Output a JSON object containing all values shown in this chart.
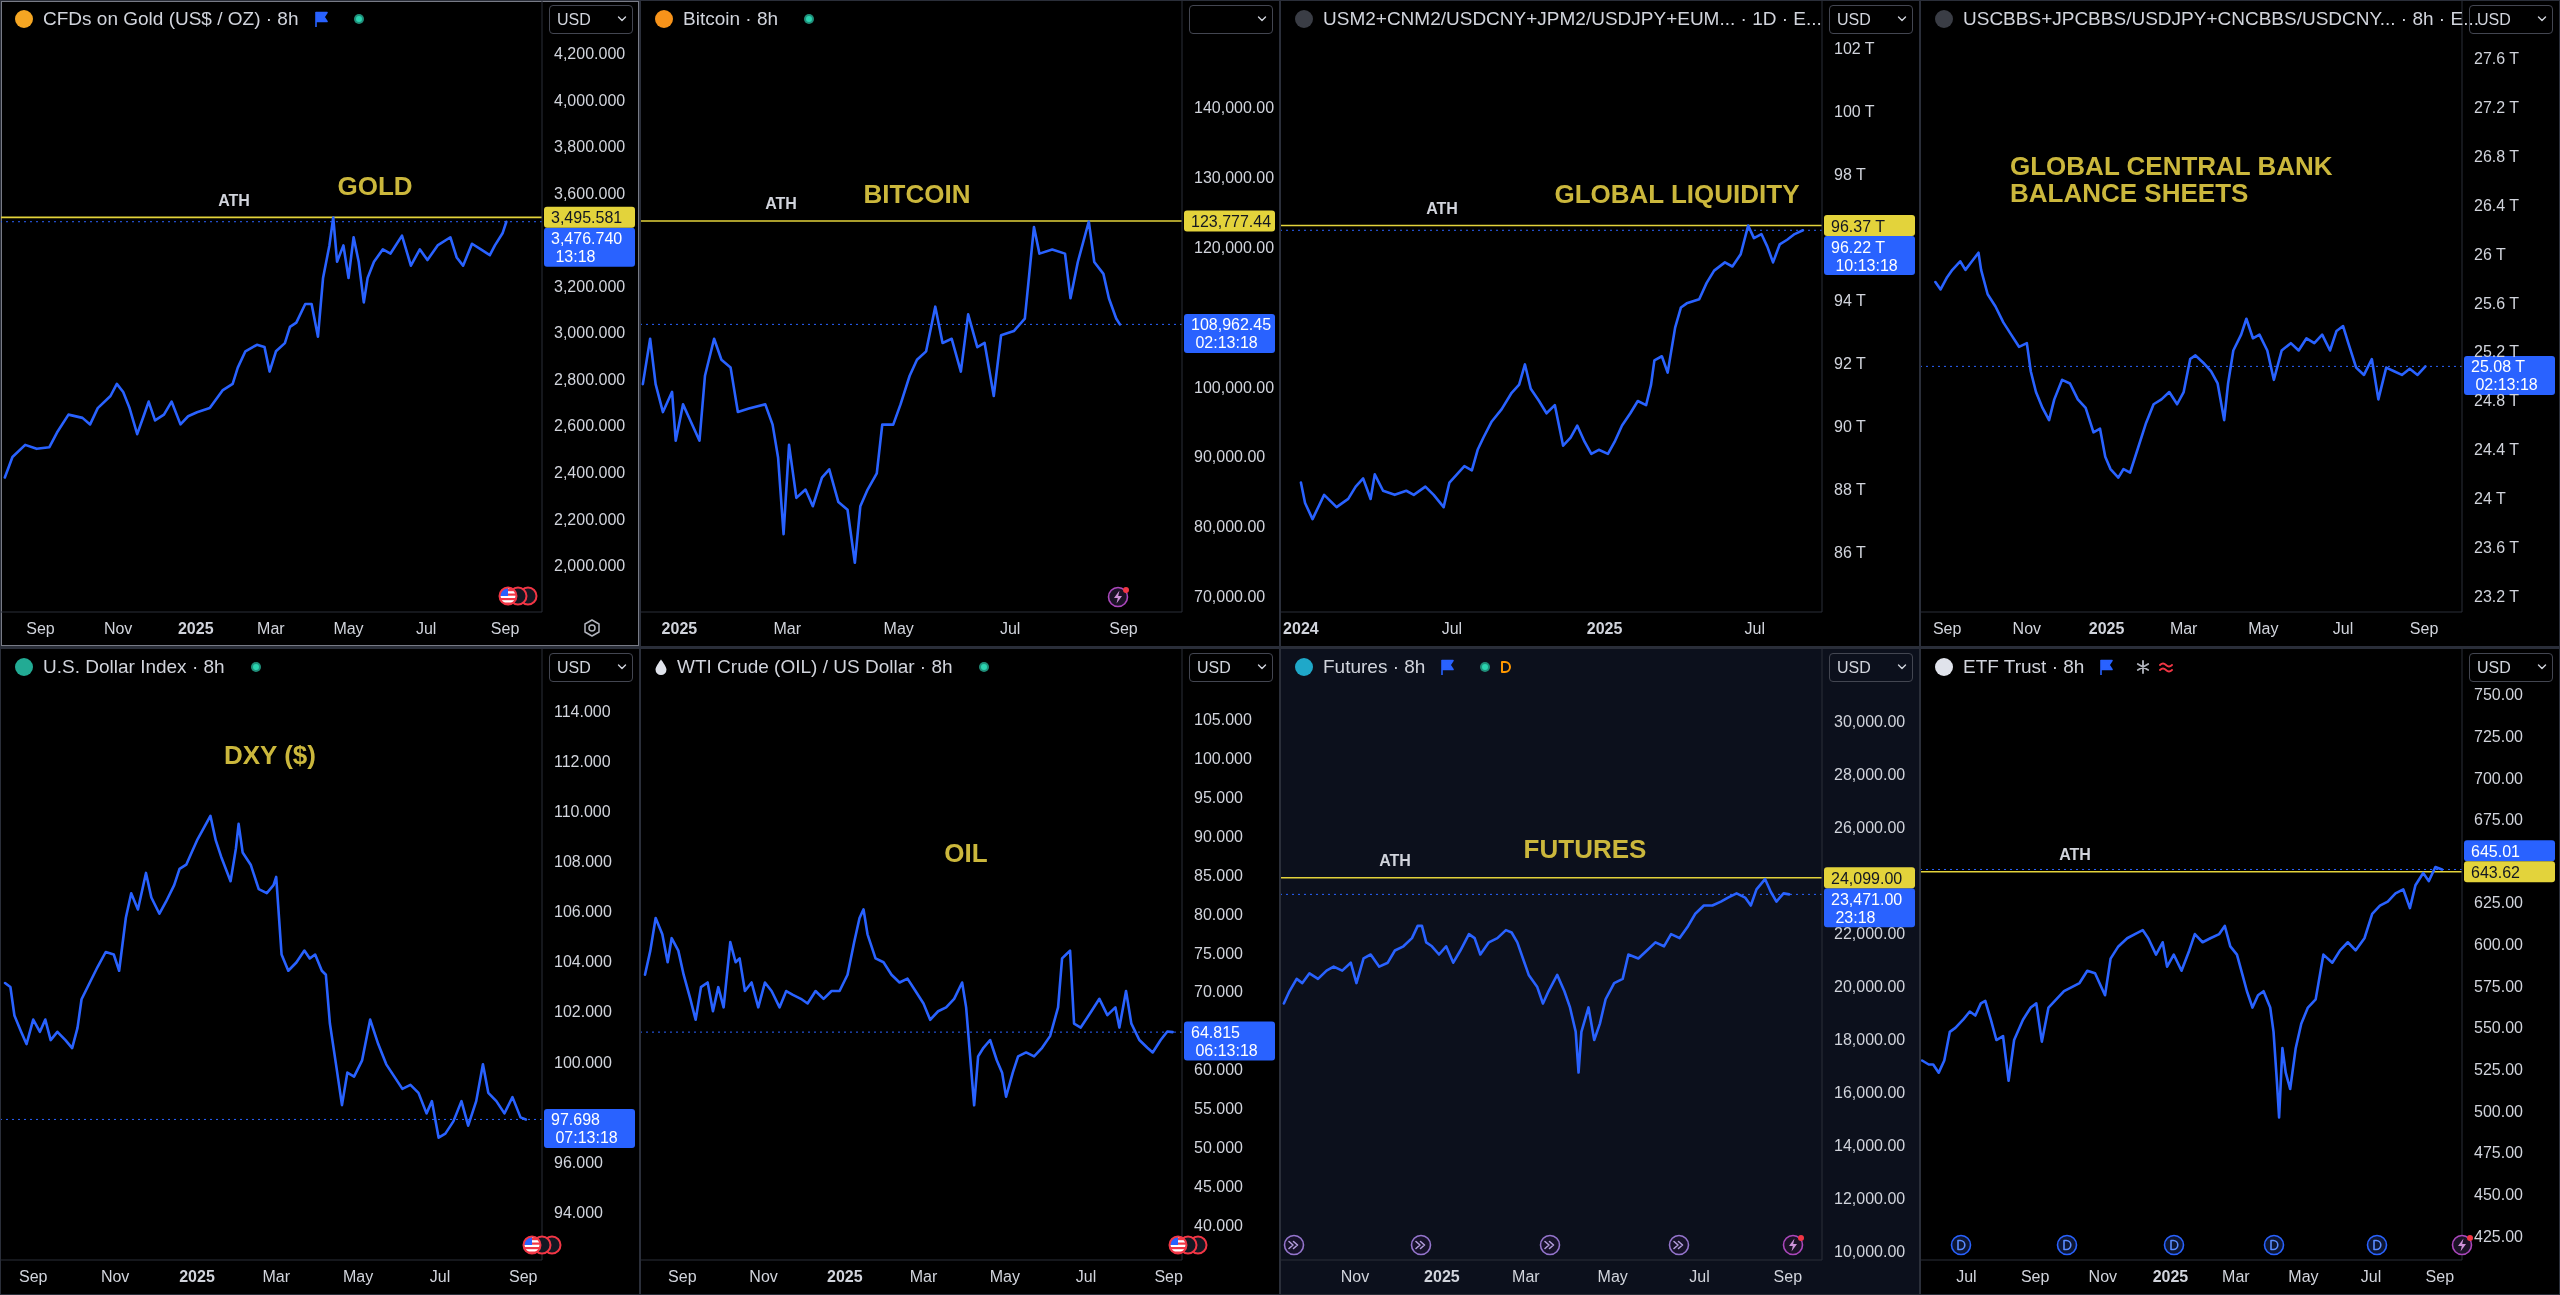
{
  "chart_data": [
    {
      "type": "line",
      "title": "CFDs on Gold (US$ / OZ) · 8h",
      "ylabel": "USD",
      "annotations": [
        "GOLD"
      ],
      "color": "#2962ff",
      "x": [
        "2024-08-04",
        "2024-08-10",
        "2024-08-20",
        "2024-08-29",
        "2024-09-08",
        "2024-09-14",
        "2024-09-23",
        "2024-10-04",
        "2024-10-10",
        "2024-10-16",
        "2024-10-26",
        "2024-10-31",
        "2024-11-05",
        "2024-11-10",
        "2024-11-16",
        "2024-11-21",
        "2024-11-25",
        "2024-11-30",
        "2024-12-07",
        "2024-12-13",
        "2024-12-20",
        "2024-12-26",
        "2025-01-02",
        "2025-01-12",
        "2025-01-22",
        "2025-01-30",
        "2025-02-03",
        "2025-02-09",
        "2025-02-18",
        "2025-02-24",
        "2025-02-28",
        "2025-03-05",
        "2025-03-12",
        "2025-03-16",
        "2025-03-21",
        "2025-03-28",
        "2025-04-02",
        "2025-04-07",
        "2025-04-11",
        "2025-04-16",
        "2025-04-19",
        "2025-04-22",
        "2025-04-27",
        "2025-05-01",
        "2025-05-05",
        "2025-05-09",
        "2025-05-13",
        "2025-05-16",
        "2025-05-21",
        "2025-05-28",
        "2025-06-03",
        "2025-06-12",
        "2025-06-19",
        "2025-06-26",
        "2025-07-02",
        "2025-07-10",
        "2025-07-20",
        "2025-07-25",
        "2025-07-30",
        "2025-08-06",
        "2025-08-13",
        "2025-08-20",
        "2025-08-24",
        "2025-08-30",
        "2025-09-02"
      ],
      "values": [
        2378,
        2466,
        2518,
        2501,
        2508,
        2571,
        2648,
        2634,
        2606,
        2676,
        2728,
        2780,
        2745,
        2676,
        2564,
        2641,
        2704,
        2623,
        2648,
        2704,
        2606,
        2641,
        2658,
        2676,
        2752,
        2780,
        2850,
        2920,
        2948,
        2938,
        2833,
        2920,
        2955,
        3025,
        3043,
        3123,
        3123,
        2983,
        3235,
        3375,
        3495,
        3305,
        3375,
        3235,
        3410,
        3305,
        3130,
        3235,
        3305,
        3358,
        3340,
        3417,
        3288,
        3358,
        3312,
        3375,
        3410,
        3323,
        3288,
        3382,
        3358,
        3333,
        3375,
        3427,
        3476.74
      ],
      "xlim": [
        "2024-08-01",
        "2025-09-30"
      ],
      "xticks": [
        {
          "value": "2024-09-01",
          "label": "Sep"
        },
        {
          "value": "2024-11-01",
          "label": "Nov"
        },
        {
          "value": "2025-01-01",
          "label": "2025"
        },
        {
          "value": "2025-03-01",
          "label": "Mar"
        },
        {
          "value": "2025-05-01",
          "label": "May"
        },
        {
          "value": "2025-07-01",
          "label": "Jul"
        },
        {
          "value": "2025-09-01",
          "label": "Sep"
        }
      ],
      "ylim": [
        1800,
        4425
      ],
      "yticks": [
        {
          "value": 2000,
          "label": "2,000.000"
        },
        {
          "value": 2200,
          "label": "2,200.000"
        },
        {
          "value": 2400,
          "label": "2,400.000"
        },
        {
          "value": 2600,
          "label": "2,600.000"
        },
        {
          "value": 2800,
          "label": "2,800.000"
        },
        {
          "value": 3000,
          "label": "3,000.000"
        },
        {
          "value": 3200,
          "label": "3,200.000"
        },
        {
          "value": 3495.581,
          "label": "3,495.581"
        },
        {
          "value": 3600,
          "label": "3,600.000"
        },
        {
          "value": 3800,
          "label": "3,800.000"
        },
        {
          "value": 4000,
          "label": "4,000.000"
        },
        {
          "value": 4200,
          "label": "4,200.000"
        }
      ],
      "ref_lines": [
        {
          "axis": "y",
          "value": 3495.581,
          "label": "ATH",
          "color": "#e3d33b"
        },
        {
          "axis": "y",
          "value": 3476.74,
          "label": "3,476.740\n13:18",
          "color": "#2962ff",
          "line_style": "dotted"
        }
      ]
    },
    {
      "type": "line",
      "title": "Bitcoin · 8h",
      "annotations": [
        "BITCOIN"
      ],
      "color": "#2962ff",
      "x": [
        "2024-12-12",
        "2024-12-16",
        "2024-12-19",
        "2024-12-23",
        "2024-12-28",
        "2024-12-30",
        "2025-01-03",
        "2025-01-07",
        "2025-01-12",
        "2025-01-15",
        "2025-01-20",
        "2025-01-24",
        "2025-01-29",
        "2025-02-02",
        "2025-02-08",
        "2025-02-17",
        "2025-02-21",
        "2025-02-24",
        "2025-02-27",
        "2025-03-02",
        "2025-03-06",
        "2025-03-11",
        "2025-03-15",
        "2025-03-20",
        "2025-03-24",
        "2025-03-29",
        "2025-04-03",
        "2025-04-07",
        "2025-04-10",
        "2025-04-14",
        "2025-04-19",
        "2025-04-22",
        "2025-04-28",
        "2025-05-02",
        "2025-05-07",
        "2025-05-11",
        "2025-05-16",
        "2025-05-21",
        "2025-05-25",
        "2025-05-30",
        "2025-06-04",
        "2025-06-08",
        "2025-06-13",
        "2025-06-17",
        "2025-06-22",
        "2025-06-26",
        "2025-07-03",
        "2025-07-09",
        "2025-07-14",
        "2025-07-17",
        "2025-07-24",
        "2025-07-31",
        "2025-08-03",
        "2025-08-07",
        "2025-08-13",
        "2025-08-16",
        "2025-08-21",
        "2025-08-24",
        "2025-08-28",
        "2025-08-30"
      ],
      "values": [
        100400,
        106900,
        100400,
        96400,
        99300,
        92300,
        97500,
        95200,
        92300,
        101600,
        106900,
        103900,
        102800,
        96400,
        96900,
        97500,
        94600,
        89900,
        78900,
        91700,
        84100,
        85300,
        82900,
        87000,
        88200,
        83500,
        82400,
        74800,
        82900,
        85300,
        87600,
        94600,
        94600,
        97500,
        101600,
        103900,
        105100,
        111500,
        106300,
        106900,
        102200,
        110400,
        105700,
        106300,
        98700,
        107400,
        108000,
        109800,
        122900,
        119100,
        119700,
        119100,
        112700,
        117900,
        123700,
        117900,
        116200,
        112700,
        109800,
        108962.45
      ],
      "xlim": [
        "2024-12-11",
        "2025-10-03"
      ],
      "xticks": [
        {
          "value": "2025-01-01",
          "label": "2025"
        },
        {
          "value": "2025-03-01",
          "label": "Mar"
        },
        {
          "value": "2025-05-01",
          "label": "May"
        },
        {
          "value": "2025-07-01",
          "label": "Jul"
        },
        {
          "value": "2025-09-01",
          "label": "Sep"
        }
      ],
      "ylim": [
        67750,
        155300
      ],
      "yticks": [
        {
          "value": 70000,
          "label": "70,000.00"
        },
        {
          "value": 80000,
          "label": "80,000.00"
        },
        {
          "value": 90000,
          "label": "90,000.00"
        },
        {
          "value": 100000,
          "label": "100,000.00"
        },
        {
          "value": 120000,
          "label": "120,000.00"
        },
        {
          "value": 123777.44,
          "label": "123,777.44"
        },
        {
          "value": 130000,
          "label": "130,000.00"
        },
        {
          "value": 140000,
          "label": "140,000.00"
        }
      ],
      "ref_lines": [
        {
          "axis": "y",
          "value": 123777.44,
          "label": "ATH",
          "color": "#e3d33b"
        },
        {
          "axis": "y",
          "value": 108962.45,
          "label": "108,962.45\n02:13:18",
          "color": "#2962ff",
          "line_style": "dotted"
        }
      ]
    },
    {
      "type": "line",
      "title": "USM2+CNM2/USDCNY+JPM2/USDJPY+EUM... · 1D · E...",
      "ylabel": "USD",
      "annotations": [
        "GLOBAL LIQUIDITY"
      ],
      "color": "#2962ff",
      "x": [
        "2024-01-01",
        "2024-01-06",
        "2024-01-15",
        "2024-01-29",
        "2024-02-13",
        "2024-02-27",
        "2024-03-07",
        "2024-03-16",
        "2024-03-25",
        "2024-03-30",
        "2024-04-09",
        "2024-04-23",
        "2024-05-07",
        "2024-05-16",
        "2024-05-30",
        "2024-06-09",
        "2024-06-21",
        "2024-06-28",
        "2024-07-07",
        "2024-07-16",
        "2024-07-25",
        "2024-08-01",
        "2024-08-08",
        "2024-08-18",
        "2024-08-30",
        "2024-09-11",
        "2024-09-20",
        "2024-09-27",
        "2024-10-04",
        "2024-10-14",
        "2024-10-23",
        "2024-11-02",
        "2024-11-12",
        "2024-11-21",
        "2024-11-29",
        "2024-12-08",
        "2024-12-16",
        "2024-12-25",
        "2025-01-05",
        "2025-01-13",
        "2025-01-22",
        "2025-02-01",
        "2025-02-10",
        "2025-02-20",
        "2025-02-26",
        "2025-03-02",
        "2025-03-11",
        "2025-03-18",
        "2025-03-27",
        "2025-04-03",
        "2025-04-10",
        "2025-04-25",
        "2025-05-04",
        "2025-05-13",
        "2025-05-26",
        "2025-06-04",
        "2025-06-14",
        "2025-06-23",
        "2025-06-30",
        "2025-07-09",
        "2025-07-16",
        "2025-07-23",
        "2025-07-31",
        "2025-08-09",
        "2025-08-18",
        "2025-08-28"
      ],
      "values": [
        88.21,
        87.56,
        87.05,
        87.82,
        87.43,
        87.69,
        88.08,
        88.34,
        87.69,
        88.47,
        87.95,
        87.82,
        87.95,
        87.82,
        88.08,
        87.82,
        87.43,
        88.21,
        88.47,
        88.73,
        88.6,
        89.25,
        89.64,
        90.15,
        90.54,
        91.06,
        91.32,
        91.96,
        91.19,
        90.8,
        90.41,
        90.67,
        89.38,
        89.64,
        90.02,
        89.5,
        89.12,
        89.25,
        89.12,
        89.5,
        90.02,
        90.41,
        90.8,
        90.67,
        91.32,
        92.09,
        92.22,
        91.7,
        93.13,
        93.77,
        93.9,
        94.03,
        94.55,
        94.94,
        95.2,
        95.07,
        95.46,
        96.37,
        95.97,
        96.1,
        95.71,
        95.2,
        95.77,
        95.92,
        96.1,
        96.22
      ],
      "xlim": [
        "2023-12-08",
        "2025-09-20"
      ],
      "xticks": [
        {
          "value": "2024-01-01",
          "label": "2024"
        },
        {
          "value": "2024-07-01",
          "label": "Jul"
        },
        {
          "value": "2025-01-01",
          "label": "2025"
        },
        {
          "value": "2025-07-01",
          "label": "Jul"
        }
      ],
      "ylim": [
        84.1,
        103.5
      ],
      "yticks": [
        {
          "value": 86,
          "label": "86 T"
        },
        {
          "value": 88,
          "label": "88 T"
        },
        {
          "value": 90,
          "label": "90 T"
        },
        {
          "value": 92,
          "label": "92 T"
        },
        {
          "value": 94,
          "label": "94 T"
        },
        {
          "value": 96.37,
          "label": "96.37 T"
        },
        {
          "value": 98,
          "label": "98 T"
        },
        {
          "value": 100,
          "label": "100 T"
        },
        {
          "value": 102,
          "label": "102 T"
        }
      ],
      "ref_lines": [
        {
          "axis": "y",
          "value": 96.37,
          "label": "ATH",
          "color": "#e3d33b"
        },
        {
          "axis": "y",
          "value": 96.22,
          "label": "96.22 T\n10:13:18",
          "color": "#2962ff",
          "line_style": "dotted"
        }
      ]
    },
    {
      "type": "line",
      "title": "USCBBS+JPCBBS/USDJPY+CNCBBS/USDCNY... · 8h · E...",
      "ylabel": "USD",
      "annotations": [
        "GLOBAL CENTRAL BANK\nBALANCE SHEETS"
      ],
      "color": "#2962ff",
      "x": [
        "2024-08-23",
        "2024-08-27",
        "2024-09-01",
        "2024-09-05",
        "2024-09-11",
        "2024-09-15",
        "2024-09-20",
        "2024-09-25",
        "2024-09-27",
        "2024-10-02",
        "2024-10-08",
        "2024-10-14",
        "2024-10-20",
        "2024-10-26",
        "2024-11-01",
        "2024-11-04",
        "2024-11-08",
        "2024-11-13",
        "2024-11-18",
        "2024-11-22",
        "2024-11-28",
        "2024-12-04",
        "2024-12-10",
        "2024-12-16",
        "2024-12-22",
        "2024-12-27",
        "2024-12-31",
        "2025-01-04",
        "2025-01-10",
        "2025-01-14",
        "2025-01-19",
        "2025-01-25",
        "2025-01-31",
        "2025-02-06",
        "2025-02-12",
        "2025-02-18",
        "2025-02-24",
        "2025-03-01",
        "2025-03-06",
        "2025-03-10",
        "2025-03-16",
        "2025-03-22",
        "2025-03-27",
        "2025-04-01",
        "2025-04-04",
        "2025-04-08",
        "2025-04-14",
        "2025-04-18",
        "2025-04-23",
        "2025-04-28",
        "2025-05-04",
        "2025-05-09",
        "2025-05-15",
        "2025-05-22",
        "2025-05-28",
        "2025-06-03",
        "2025-06-09",
        "2025-06-15",
        "2025-06-21",
        "2025-06-26",
        "2025-07-01",
        "2025-07-05",
        "2025-07-11",
        "2025-07-17",
        "2025-07-23",
        "2025-07-28",
        "2025-08-03",
        "2025-08-09",
        "2025-08-15",
        "2025-08-21",
        "2025-08-27",
        "2025-09-02"
      ],
      "values": [
        25.77,
        25.71,
        25.81,
        25.87,
        25.94,
        25.87,
        25.94,
        26.01,
        25.87,
        25.67,
        25.57,
        25.44,
        25.34,
        25.24,
        25.27,
        25.04,
        24.87,
        24.74,
        24.64,
        24.81,
        24.97,
        24.94,
        24.81,
        24.74,
        24.54,
        24.57,
        24.34,
        24.24,
        24.17,
        24.24,
        24.21,
        24.41,
        24.61,
        24.77,
        24.81,
        24.87,
        24.77,
        24.87,
        25.14,
        25.17,
        25.11,
        25.04,
        24.94,
        24.64,
        24.94,
        25.21,
        25.34,
        25.47,
        25.31,
        25.34,
        25.21,
        24.97,
        25.21,
        25.27,
        25.21,
        25.31,
        25.27,
        25.34,
        25.21,
        25.37,
        25.41,
        25.27,
        25.07,
        25.01,
        25.14,
        24.81,
        25.07,
        25.04,
        25.01,
        25.06,
        25.01,
        25.08
      ],
      "xlim": [
        "2024-08-12",
        "2025-09-30"
      ],
      "xticks": [
        {
          "value": "2024-09-01",
          "label": "Sep"
        },
        {
          "value": "2024-11-01",
          "label": "Nov"
        },
        {
          "value": "2025-01-01",
          "label": "2025"
        },
        {
          "value": "2025-03-01",
          "label": "Mar"
        },
        {
          "value": "2025-05-01",
          "label": "May"
        },
        {
          "value": "2025-07-01",
          "label": "Jul"
        },
        {
          "value": "2025-09-01",
          "label": "Sep"
        }
      ],
      "ylim": [
        23.07,
        28.07
      ],
      "yticks": [
        {
          "value": 23.2,
          "label": "23.2 T"
        },
        {
          "value": 23.6,
          "label": "23.6 T"
        },
        {
          "value": 24,
          "label": "24 T"
        },
        {
          "value": 24.4,
          "label": "24.4 T"
        },
        {
          "value": 24.8,
          "label": "24.8 T"
        },
        {
          "value": 25.2,
          "label": "25.2 T"
        },
        {
          "value": 25.6,
          "label": "25.6 T"
        },
        {
          "value": 26,
          "label": "26 T"
        },
        {
          "value": 26.4,
          "label": "26.4 T"
        },
        {
          "value": 26.8,
          "label": "26.8 T"
        },
        {
          "value": 27.2,
          "label": "27.2 T"
        },
        {
          "value": 27.6,
          "label": "27.6 T"
        }
      ],
      "ref_lines": [
        {
          "axis": "y",
          "value": 25.08,
          "label": "25.08 T\n02:13:18",
          "color": "#2962ff",
          "line_style": "dotted"
        }
      ]
    },
    {
      "type": "line",
      "title": "U.S. Dollar Index · 8h",
      "ylabel": "USD",
      "annotations": [
        "DXY ($)"
      ],
      "color": "#2962ff",
      "x": [
        "2024-08-11",
        "2024-08-15",
        "2024-08-18",
        "2024-08-23",
        "2024-08-27",
        "2024-09-01",
        "2024-09-06",
        "2024-09-10",
        "2024-09-14",
        "2024-09-19",
        "2024-09-25",
        "2024-09-30",
        "2024-10-04",
        "2024-10-07",
        "2024-10-13",
        "2024-10-19",
        "2024-10-25",
        "2024-10-31",
        "2024-11-04",
        "2024-11-09",
        "2024-11-13",
        "2024-11-18",
        "2024-11-24",
        "2024-11-28",
        "2024-12-04",
        "2024-12-09",
        "2024-12-15",
        "2024-12-19",
        "2024-12-24",
        "2024-12-28",
        "2025-01-01",
        "2025-01-06",
        "2025-01-11",
        "2025-01-15",
        "2025-01-19",
        "2025-01-26",
        "2025-01-30",
        "2025-02-01",
        "2025-02-04",
        "2025-02-10",
        "2025-02-16",
        "2025-02-22",
        "2025-02-27",
        "2025-03-01",
        "2025-03-05",
        "2025-03-10",
        "2025-03-16",
        "2025-03-22",
        "2025-03-26",
        "2025-03-30",
        "2025-04-04",
        "2025-04-07",
        "2025-04-10",
        "2025-04-15",
        "2025-04-19",
        "2025-04-23",
        "2025-04-28",
        "2025-05-04",
        "2025-05-10",
        "2025-05-16",
        "2025-05-22",
        "2025-05-28",
        "2025-06-03",
        "2025-06-09",
        "2025-06-15",
        "2025-06-21",
        "2025-06-25",
        "2025-06-30",
        "2025-07-05",
        "2025-07-11",
        "2025-07-17",
        "2025-07-22",
        "2025-07-28",
        "2025-08-02",
        "2025-08-06",
        "2025-08-12",
        "2025-08-18",
        "2025-08-24",
        "2025-08-30",
        "2025-09-03"
      ],
      "values": [
        103.15,
        102.99,
        101.85,
        101.2,
        100.71,
        101.69,
        101.2,
        101.69,
        100.87,
        101.2,
        100.87,
        100.55,
        101.36,
        102.5,
        103.15,
        103.8,
        104.39,
        104.29,
        103.64,
        105.76,
        106.74,
        106.09,
        107.55,
        106.57,
        105.92,
        106.41,
        107.06,
        107.71,
        107.88,
        108.37,
        108.85,
        109.34,
        109.83,
        108.85,
        108.2,
        107.22,
        108.53,
        109.51,
        108.37,
        107.88,
        106.9,
        106.74,
        107.06,
        107.39,
        104.29,
        103.64,
        103.97,
        104.45,
        104.13,
        104.29,
        103.64,
        103.48,
        101.53,
        99.74,
        98.27,
        99.57,
        99.41,
        100.06,
        101.69,
        100.71,
        99.9,
        99.41,
        98.92,
        99.08,
        98.76,
        97.94,
        98.43,
        96.97,
        97.13,
        97.62,
        98.43,
        97.45,
        98.43,
        99.9,
        98.76,
        98.43,
        97.94,
        98.59,
        97.78,
        97.698
      ],
      "xlim": [
        "2024-08-08",
        "2025-09-15"
      ],
      "xticks": [
        {
          "value": "2024-09-01",
          "label": "Sep"
        },
        {
          "value": "2024-11-01",
          "label": "Nov"
        },
        {
          "value": "2025-01-01",
          "label": "2025"
        },
        {
          "value": "2025-03-01",
          "label": "Mar"
        },
        {
          "value": "2025-05-01",
          "label": "May"
        },
        {
          "value": "2025-07-01",
          "label": "Jul"
        },
        {
          "value": "2025-09-01",
          "label": "Sep"
        }
      ],
      "ylim": [
        92.08,
        116.5
      ],
      "yticks": [
        {
          "value": 94,
          "label": "94.000"
        },
        {
          "value": 96,
          "label": "96.000"
        },
        {
          "value": 100,
          "label": "100.000"
        },
        {
          "value": 102,
          "label": "102.000"
        },
        {
          "value": 104,
          "label": "104.000"
        },
        {
          "value": 106,
          "label": "106.000"
        },
        {
          "value": 108,
          "label": "108.000"
        },
        {
          "value": 110,
          "label": "110.000"
        },
        {
          "value": 112,
          "label": "112.000"
        },
        {
          "value": 114,
          "label": "114.000"
        }
      ],
      "ref_lines": [
        {
          "axis": "y",
          "value": 97.698,
          "label": "97.698\n07:13:18",
          "color": "#2962ff",
          "line_style": "dotted"
        }
      ]
    },
    {
      "type": "line",
      "title": "WTI Crude (OIL) / US Dollar · 8h",
      "ylabel": "USD",
      "annotations": [
        "OIL"
      ],
      "color": "#2962ff",
      "x": [
        "2024-08-04",
        "2024-08-08",
        "2024-08-12",
        "2024-08-17",
        "2024-08-21",
        "2024-08-24",
        "2024-08-29",
        "2024-09-02",
        "2024-09-07",
        "2024-09-11",
        "2024-09-15",
        "2024-09-20",
        "2024-09-24",
        "2024-09-28",
        "2024-10-02",
        "2024-10-07",
        "2024-10-11",
        "2024-10-14",
        "2024-10-18",
        "2024-10-23",
        "2024-10-28",
        "2024-11-02",
        "2024-11-07",
        "2024-11-13",
        "2024-11-18",
        "2024-11-23",
        "2024-11-29",
        "2024-12-04",
        "2024-12-10",
        "2024-12-16",
        "2024-12-22",
        "2024-12-28",
        "2025-01-03",
        "2025-01-08",
        "2025-01-12",
        "2025-01-15",
        "2025-01-18",
        "2025-01-24",
        "2025-01-30",
        "2025-02-05",
        "2025-02-11",
        "2025-02-17",
        "2025-02-23",
        "2025-03-01",
        "2025-03-06",
        "2025-03-12",
        "2025-03-18",
        "2025-03-24",
        "2025-03-30",
        "2025-04-02",
        "2025-04-05",
        "2025-04-08",
        "2025-04-11",
        "2025-04-15",
        "2025-04-20",
        "2025-04-25",
        "2025-04-29",
        "2025-05-02",
        "2025-05-07",
        "2025-05-11",
        "2025-05-17",
        "2025-05-23",
        "2025-05-29",
        "2025-06-04",
        "2025-06-10",
        "2025-06-13",
        "2025-06-16",
        "2025-06-19",
        "2025-06-22",
        "2025-06-27",
        "2025-07-05",
        "2025-07-11",
        "2025-07-17",
        "2025-07-23",
        "2025-07-26",
        "2025-07-31",
        "2025-08-04",
        "2025-08-10",
        "2025-08-16",
        "2025-08-20",
        "2025-08-26",
        "2025-08-31",
        "2025-09-04"
      ],
      "values": [
        72.2,
        75.3,
        79.5,
        77.4,
        73.8,
        76.9,
        75.3,
        72.2,
        69.1,
        66.4,
        70.6,
        71.2,
        67.5,
        70.6,
        68.0,
        76.4,
        73.8,
        74.3,
        70.1,
        71.2,
        68.0,
        71.2,
        70.1,
        68.0,
        70.1,
        69.6,
        69.1,
        68.5,
        70.1,
        69.1,
        70.1,
        70.1,
        72.2,
        76.4,
        79.5,
        80.6,
        77.4,
        74.3,
        73.8,
        72.2,
        71.2,
        71.7,
        70.1,
        68.5,
        66.4,
        67.5,
        68.0,
        69.1,
        71.2,
        68.0,
        61.7,
        55.4,
        61.7,
        62.8,
        63.8,
        61.2,
        59.6,
        56.5,
        59.6,
        61.7,
        62.2,
        61.7,
        62.8,
        64.3,
        68.0,
        74.3,
        74.8,
        75.3,
        65.9,
        65.4,
        67.5,
        69.1,
        67.0,
        68.0,
        65.4,
        70.1,
        65.9,
        63.8,
        62.8,
        62.2,
        63.8,
        64.9,
        64.815
      ],
      "xlim": [
        "2024-08-01",
        "2025-09-11"
      ],
      "xticks": [
        {
          "value": "2024-09-01",
          "label": "Sep"
        },
        {
          "value": "2024-11-01",
          "label": "Nov"
        },
        {
          "value": "2025-01-01",
          "label": "2025"
        },
        {
          "value": "2025-03-01",
          "label": "Mar"
        },
        {
          "value": "2025-05-01",
          "label": "May"
        },
        {
          "value": "2025-07-01",
          "label": "Jul"
        },
        {
          "value": "2025-09-01",
          "label": "Sep"
        }
      ],
      "ylim": [
        35.5,
        114.1
      ],
      "yticks": [
        {
          "value": 40,
          "label": "40.000"
        },
        {
          "value": 45,
          "label": "45.000"
        },
        {
          "value": 50,
          "label": "50.000"
        },
        {
          "value": 55,
          "label": "55.000"
        },
        {
          "value": 60,
          "label": "60.000"
        },
        {
          "value": 70,
          "label": "70.000"
        },
        {
          "value": 75,
          "label": "75.000"
        },
        {
          "value": 80,
          "label": "80.000"
        },
        {
          "value": 85,
          "label": "85.000"
        },
        {
          "value": 90,
          "label": "90.000"
        },
        {
          "value": 95,
          "label": "95.000"
        },
        {
          "value": 100,
          "label": "100.000"
        },
        {
          "value": 105,
          "label": "105.000"
        }
      ],
      "ref_lines": [
        {
          "axis": "y",
          "value": 64.815,
          "label": "64.815\n06:13:18",
          "color": "#2962ff",
          "line_style": "dotted"
        }
      ]
    },
    {
      "type": "line",
      "title": "Futures · 8h",
      "ylabel": "USD",
      "annotations": [
        "FUTURES"
      ],
      "color": "#2962ff",
      "x": [
        "2024-09-12",
        "2024-09-16",
        "2024-09-21",
        "2024-09-25",
        "2024-09-30",
        "2024-10-06",
        "2024-10-12",
        "2024-10-17",
        "2024-10-23",
        "2024-10-29",
        "2024-11-02",
        "2024-11-07",
        "2024-11-12",
        "2024-11-18",
        "2024-11-24",
        "2024-11-29",
        "2024-12-05",
        "2024-12-11",
        "2024-12-15",
        "2024-12-18",
        "2024-12-21",
        "2024-12-25",
        "2024-12-30",
        "2025-01-04",
        "2025-01-09",
        "2025-01-14",
        "2025-01-20",
        "2025-01-24",
        "2025-01-28",
        "2025-02-03",
        "2025-02-09",
        "2025-02-15",
        "2025-02-19",
        "2025-02-23",
        "2025-02-28",
        "2025-03-03",
        "2025-03-09",
        "2025-03-13",
        "2025-03-17",
        "2025-03-23",
        "2025-03-28",
        "2025-04-01",
        "2025-04-05",
        "2025-04-07",
        "2025-04-09",
        "2025-04-14",
        "2025-04-18",
        "2025-04-22",
        "2025-04-26",
        "2025-05-02",
        "2025-05-08",
        "2025-05-12",
        "2025-05-19",
        "2025-05-25",
        "2025-05-31",
        "2025-06-06",
        "2025-06-11",
        "2025-06-17",
        "2025-06-23",
        "2025-06-28",
        "2025-07-04",
        "2025-07-10",
        "2025-07-16",
        "2025-07-21",
        "2025-07-27",
        "2025-08-02",
        "2025-08-06",
        "2025-08-10",
        "2025-08-16",
        "2025-08-20",
        "2025-08-24",
        "2025-08-29",
        "2025-09-02"
      ],
      "values": [
        19350,
        19820,
        20280,
        20120,
        20490,
        20280,
        20590,
        20740,
        20590,
        20890,
        20120,
        21050,
        21200,
        20740,
        20890,
        21350,
        21510,
        21820,
        22280,
        22280,
        21660,
        21510,
        21200,
        21510,
        20890,
        21350,
        21970,
        21820,
        21200,
        21660,
        21820,
        22120,
        22030,
        21660,
        20890,
        20430,
        19970,
        19350,
        19820,
        20430,
        19820,
        19200,
        18280,
        16740,
        18280,
        19200,
        17970,
        18590,
        19510,
        20120,
        20280,
        21200,
        21050,
        21350,
        21660,
        21510,
        21970,
        21820,
        22280,
        22740,
        23050,
        23050,
        23200,
        23350,
        23510,
        23350,
        23050,
        23660,
        24050,
        23570,
        23200,
        23510,
        23471
      ],
      "xlim": [
        "2024-09-10",
        "2025-09-25"
      ],
      "xticks": [
        {
          "value": "2024-11-01",
          "label": "Nov"
        },
        {
          "value": "2025-01-01",
          "label": "2025"
        },
        {
          "value": "2025-03-01",
          "label": "Mar"
        },
        {
          "value": "2025-05-01",
          "label": "May"
        },
        {
          "value": "2025-07-01",
          "label": "Jul"
        },
        {
          "value": "2025-09-01",
          "label": "Sep"
        }
      ],
      "ylim": [
        9660,
        32740
      ],
      "yticks": [
        {
          "value": 10000,
          "label": "10,000.00"
        },
        {
          "value": 12000,
          "label": "12,000.00"
        },
        {
          "value": 14000,
          "label": "14,000.00"
        },
        {
          "value": 16000,
          "label": "16,000.00"
        },
        {
          "value": 18000,
          "label": "18,000.00"
        },
        {
          "value": 20000,
          "label": "20,000.00"
        },
        {
          "value": 22000,
          "label": "22,000.00"
        },
        {
          "value": 24099,
          "label": "24,099.00"
        },
        {
          "value": 26000,
          "label": "26,000.00"
        },
        {
          "value": 28000,
          "label": "28,000.00"
        },
        {
          "value": 30000,
          "label": "30,000.00"
        }
      ],
      "ref_lines": [
        {
          "axis": "y",
          "value": 24099,
          "label": "ATH",
          "color": "#e3d33b"
        },
        {
          "axis": "y",
          "value": 23471,
          "label": "23,471.00\n23:18",
          "color": "#2962ff",
          "line_style": "dotted"
        }
      ]
    },
    {
      "type": "line",
      "title": "ETF Trust · 8h",
      "ylabel": "USD",
      "color": "#2962ff",
      "x": [
        "2024-05-22",
        "2024-05-28",
        "2024-06-01",
        "2024-06-06",
        "2024-06-11",
        "2024-06-16",
        "2024-06-21",
        "2024-06-28",
        "2024-07-04",
        "2024-07-09",
        "2024-07-14",
        "2024-07-18",
        "2024-07-23",
        "2024-07-28",
        "2024-08-03",
        "2024-08-08",
        "2024-08-13",
        "2024-08-21",
        "2024-08-28",
        "2024-09-02",
        "2024-09-07",
        "2024-09-13",
        "2024-09-20",
        "2024-09-27",
        "2024-10-04",
        "2024-10-11",
        "2024-10-18",
        "2024-10-25",
        "2024-11-03",
        "2024-11-08",
        "2024-11-15",
        "2024-11-23",
        "2024-11-30",
        "2024-12-07",
        "2024-12-12",
        "2024-12-19",
        "2024-12-25",
        "2024-12-29",
        "2025-01-04",
        "2025-01-11",
        "2025-01-18",
        "2025-01-23",
        "2025-01-30",
        "2025-02-06",
        "2025-02-14",
        "2025-02-19",
        "2025-02-24",
        "2025-03-02",
        "2025-03-07",
        "2025-03-11",
        "2025-03-16",
        "2025-03-21",
        "2025-03-26",
        "2025-04-01",
        "2025-04-04",
        "2025-04-07",
        "2025-04-09",
        "2025-04-12",
        "2025-04-15",
        "2025-04-19",
        "2025-04-24",
        "2025-04-29",
        "2025-05-05",
        "2025-05-12",
        "2025-05-19",
        "2025-05-27",
        "2025-06-03",
        "2025-06-10",
        "2025-06-17",
        "2025-06-25",
        "2025-07-02",
        "2025-07-09",
        "2025-07-16",
        "2025-07-23",
        "2025-07-30",
        "2025-08-05",
        "2025-08-10",
        "2025-08-17",
        "2025-08-22",
        "2025-08-28",
        "2025-09-03"
      ],
      "values": [
        530.3,
        527.9,
        527.9,
        523.0,
        530.3,
        547.5,
        549.9,
        554.8,
        559.7,
        557.3,
        564.6,
        566.1,
        554.8,
        542.6,
        545.0,
        518.1,
        542.6,
        554.8,
        562.1,
        564.6,
        541.6,
        562.1,
        567.0,
        571.9,
        574.4,
        576.8,
        584.2,
        582.7,
        569.5,
        591.5,
        598.8,
        603.7,
        606.2,
        608.6,
        603.7,
        593.9,
        601.3,
        586.6,
        593.9,
        584.2,
        596.4,
        606.2,
        601.3,
        603.7,
        606.2,
        611.1,
        598.8,
        593.9,
        581.7,
        571.9,
        562.1,
        569.5,
        571.9,
        562.1,
        547.5,
        518.1,
        496.1,
        537.7,
        523.0,
        513.2,
        537.7,
        552.4,
        562.1,
        567.0,
        593.9,
        589.0,
        596.4,
        601.3,
        596.4,
        603.7,
        618.4,
        623.3,
        625.7,
        630.6,
        633.1,
        621.8,
        635.5,
        642.9,
        638.0,
        646.5,
        645.01
      ],
      "xlim": [
        "2024-05-21",
        "2025-09-21"
      ],
      "xticks": [
        {
          "value": "2024-07-01",
          "label": "Jul"
        },
        {
          "value": "2024-09-01",
          "label": "Sep"
        },
        {
          "value": "2024-11-01",
          "label": "Nov"
        },
        {
          "value": "2025-01-01",
          "label": "2025"
        },
        {
          "value": "2025-03-01",
          "label": "Mar"
        },
        {
          "value": "2025-05-01",
          "label": "May"
        },
        {
          "value": "2025-07-01",
          "label": "Jul"
        },
        {
          "value": "2025-09-01",
          "label": "Sep"
        }
      ],
      "ylim": [
        410.5,
        777.4
      ],
      "yticks": [
        {
          "value": 425,
          "label": "425.00"
        },
        {
          "value": 450,
          "label": "450.00"
        },
        {
          "value": 475,
          "label": "475.00"
        },
        {
          "value": 500,
          "label": "500.00"
        },
        {
          "value": 525,
          "label": "525.00"
        },
        {
          "value": 550,
          "label": "550.00"
        },
        {
          "value": 575,
          "label": "575.00"
        },
        {
          "value": 600,
          "label": "600.00"
        },
        {
          "value": 625,
          "label": "625.00"
        },
        {
          "value": 643.62,
          "label": "643.62"
        },
        {
          "value": 675,
          "label": "675.00"
        },
        {
          "value": 700,
          "label": "700.00"
        },
        {
          "value": 725,
          "label": "725.00"
        },
        {
          "value": 750,
          "label": "750.00"
        }
      ],
      "ref_lines": [
        {
          "axis": "y",
          "value": 643.62,
          "label": "ATH",
          "color": "#e3d33b"
        },
        {
          "axis": "y",
          "value": 645.01,
          "label": "645.01",
          "color": "#2962ff",
          "line_style": "dotted"
        }
      ]
    }
  ]
}
